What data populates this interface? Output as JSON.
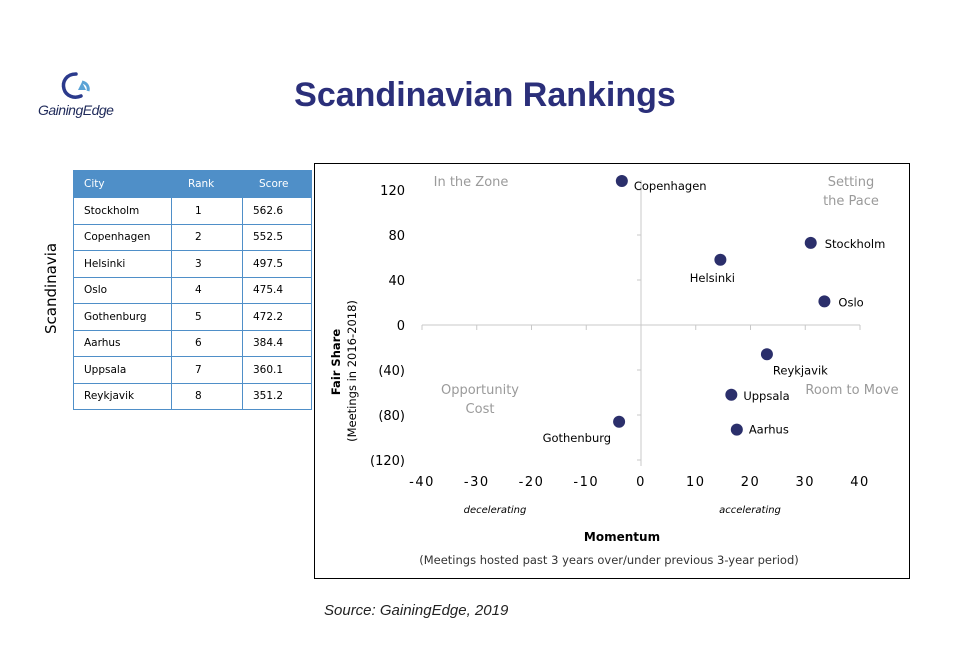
{
  "logo": {
    "text": "GainingEdge",
    "color": "#2b3a8c"
  },
  "title": "Scandinavian Rankings",
  "region_label": "Scandinavia",
  "table": {
    "headers": [
      "City",
      "Rank",
      "Score"
    ],
    "rows": [
      [
        "Stockholm",
        "1",
        "562.6"
      ],
      [
        "Copenhagen",
        "2",
        "552.5"
      ],
      [
        "Helsinki",
        "3",
        "497.5"
      ],
      [
        "Oslo",
        "4",
        "475.4"
      ],
      [
        "Gothenburg",
        "5",
        "472.2"
      ],
      [
        "Aarhus",
        "6",
        "384.4"
      ],
      [
        "Uppsala",
        "7",
        "360.1"
      ],
      [
        "Reykjavik",
        "8",
        "351.2"
      ]
    ],
    "header_color": "#4f8fc8"
  },
  "chart_data": {
    "type": "scatter",
    "xlabel": "Momentum",
    "xlabel_note": "(Meetings hosted past 3 years over/under previous 3-year period)",
    "ylabel": "Fair Share",
    "ylabel_note": "(Meetings in 2016-2018)",
    "xlim": [
      -40,
      40
    ],
    "ylim": [
      -120,
      120
    ],
    "xticks": [
      -40,
      -30,
      -20,
      -10,
      0,
      10,
      20,
      30,
      40
    ],
    "xtick_labels": [
      "-40",
      "-30",
      "-20",
      "-10",
      "0",
      "10",
      "20",
      "30",
      "40"
    ],
    "yticks": [
      120,
      80,
      40,
      0,
      -40,
      -80,
      -120
    ],
    "ytick_labels": [
      "120",
      "80",
      "40",
      "0",
      "(40)",
      "(80)",
      "(120)"
    ],
    "x_annotations": [
      "decelerating",
      "accelerating"
    ],
    "quadrants": [
      "In the Zone",
      "Setting the Pace",
      "Opportunity Cost",
      "Room to Move"
    ],
    "point_color": "#2b2f6b",
    "points": [
      {
        "label": "Copenhagen",
        "x": -3.5,
        "y": 128
      },
      {
        "label": "Stockholm",
        "x": 31,
        "y": 73
      },
      {
        "label": "Helsinki",
        "x": 14.5,
        "y": 58
      },
      {
        "label": "Oslo",
        "x": 33.5,
        "y": 21
      },
      {
        "label": "Reykjavik",
        "x": 23,
        "y": -26
      },
      {
        "label": "Uppsala",
        "x": 16.5,
        "y": -62
      },
      {
        "label": "Aarhus",
        "x": 17.5,
        "y": -93
      },
      {
        "label": "Gothenburg",
        "x": -4,
        "y": -86
      }
    ]
  },
  "source": "Source: GainingEdge, 2019"
}
